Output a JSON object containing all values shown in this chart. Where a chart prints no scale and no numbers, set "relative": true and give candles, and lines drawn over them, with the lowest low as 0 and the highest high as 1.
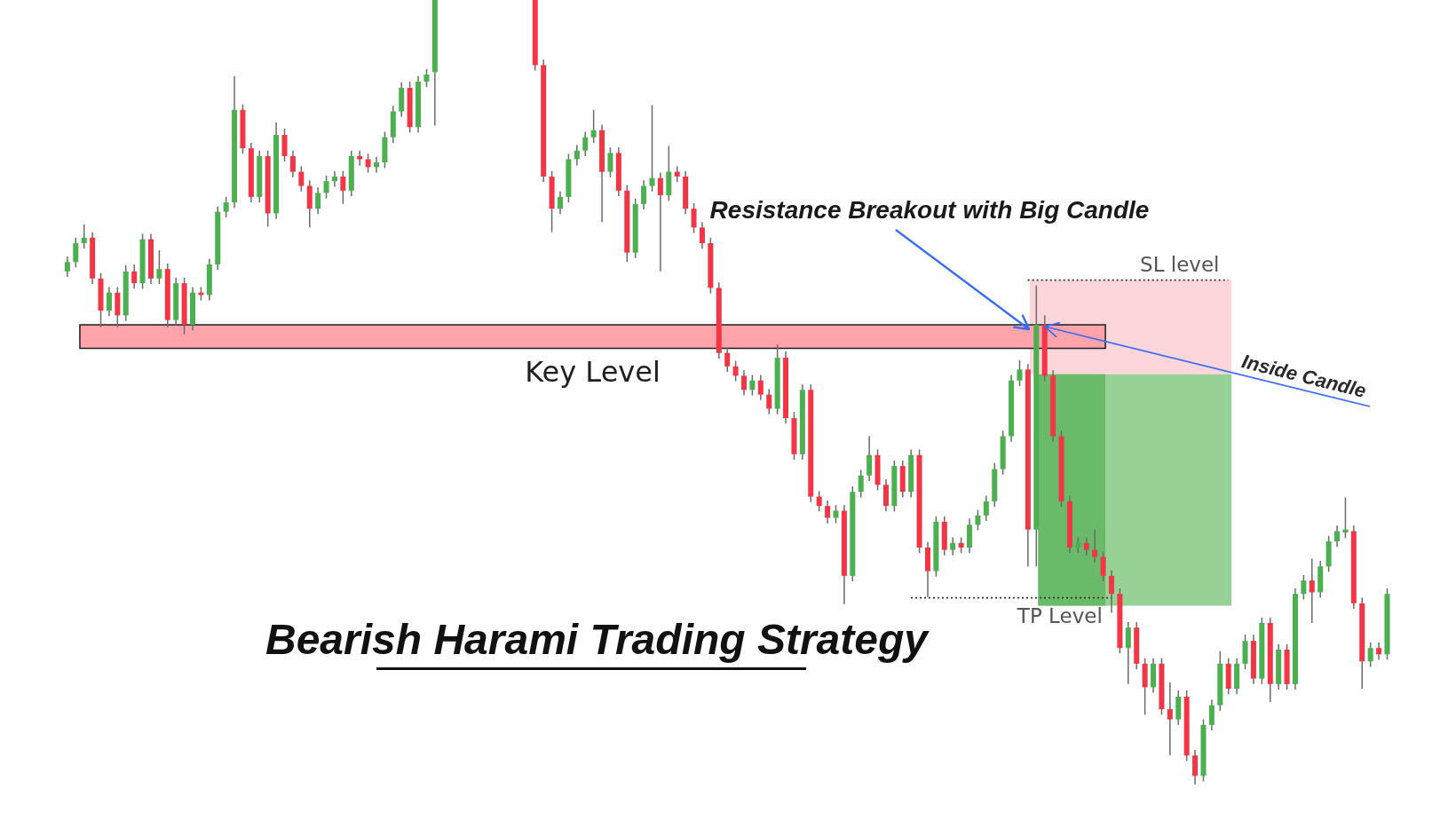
{
  "chart_data": {
    "type": "candlestick",
    "relative": true,
    "title": "Bearish Harami Trading Strategy",
    "annotations": [
      "Resistance Breakout with Big Candle",
      "Inside Candle"
    ],
    "categories": [
      null,
      null,
      null,
      null,
      null,
      null,
      null,
      null,
      null,
      null,
      null,
      null,
      null,
      null,
      null,
      null,
      null,
      null,
      null,
      null,
      null,
      null,
      null,
      null,
      null,
      null,
      null,
      null,
      null,
      null,
      null,
      null,
      null,
      null,
      null,
      null,
      null,
      null,
      null,
      null,
      null,
      null,
      null,
      null,
      null,
      null,
      null,
      null,
      null,
      null,
      null,
      null,
      null,
      null,
      null,
      null,
      null,
      null,
      null,
      null,
      null,
      null,
      null,
      null,
      null,
      null,
      null,
      null,
      null,
      null,
      null,
      null,
      null,
      null,
      null,
      null,
      null,
      null,
      null,
      null,
      null,
      null,
      null,
      null,
      null,
      null,
      null,
      null,
      null,
      null,
      null,
      null,
      null,
      null,
      null,
      null,
      null,
      null,
      null,
      null,
      null,
      null,
      null,
      null,
      null,
      null,
      null,
      null,
      null,
      null,
      null,
      null,
      null,
      null,
      null,
      null,
      null,
      null,
      null,
      null,
      null,
      null,
      null,
      null,
      null,
      null,
      null,
      null,
      null,
      null,
      null,
      null,
      null,
      null,
      null,
      null,
      null,
      null,
      null,
      null,
      null,
      null,
      null,
      null,
      null,
      null,
      null,
      null,
      null,
      null,
      null,
      null,
      null,
      null,
      null,
      null,
      null,
      null,
      null
    ],
    "ohlc": [
      [
        0.654,
        0.673,
        0.647,
        0.666
      ],
      [
        0.666,
        0.697,
        0.659,
        0.69
      ],
      [
        0.69,
        0.714,
        0.683,
        0.697
      ],
      [
        0.697,
        0.704,
        0.638,
        0.645
      ],
      [
        0.645,
        0.652,
        0.583,
        0.604
      ],
      [
        0.604,
        0.634,
        0.597,
        0.627
      ],
      [
        0.627,
        0.634,
        0.583,
        0.598
      ],
      [
        0.598,
        0.662,
        0.591,
        0.654
      ],
      [
        0.654,
        0.663,
        0.632,
        0.639
      ],
      [
        0.639,
        0.702,
        0.632,
        0.695
      ],
      [
        0.695,
        0.702,
        0.638,
        0.645
      ],
      [
        0.645,
        0.681,
        0.638,
        0.657
      ],
      [
        0.657,
        0.664,
        0.583,
        0.592
      ],
      [
        0.592,
        0.646,
        0.585,
        0.639
      ],
      [
        0.639,
        0.646,
        0.574,
        0.586
      ],
      [
        0.586,
        0.634,
        0.579,
        0.627
      ],
      [
        0.627,
        0.634,
        0.617,
        0.624
      ],
      [
        0.624,
        0.67,
        0.617,
        0.663
      ],
      [
        0.663,
        0.737,
        0.656,
        0.73
      ],
      [
        0.73,
        0.749,
        0.723,
        0.742
      ],
      [
        0.742,
        0.903,
        0.735,
        0.86
      ],
      [
        0.86,
        0.867,
        0.804,
        0.811
      ],
      [
        0.811,
        0.818,
        0.742,
        0.749
      ],
      [
        0.749,
        0.808,
        0.742,
        0.801
      ],
      [
        0.801,
        0.808,
        0.711,
        0.728
      ],
      [
        0.728,
        0.844,
        0.721,
        0.828
      ],
      [
        0.828,
        0.836,
        0.794,
        0.801
      ],
      [
        0.801,
        0.808,
        0.774,
        0.781
      ],
      [
        0.781,
        0.788,
        0.756,
        0.763
      ],
      [
        0.763,
        0.77,
        0.71,
        0.734
      ],
      [
        0.734,
        0.761,
        0.727,
        0.754
      ],
      [
        0.754,
        0.776,
        0.747,
        0.769
      ],
      [
        0.769,
        0.782,
        0.762,
        0.775
      ],
      [
        0.775,
        0.782,
        0.74,
        0.757
      ],
      [
        0.757,
        0.808,
        0.75,
        0.801
      ],
      [
        0.801,
        0.808,
        0.789,
        0.797
      ],
      [
        0.797,
        0.804,
        0.78,
        0.787
      ],
      [
        0.787,
        0.8,
        0.78,
        0.793
      ],
      [
        0.793,
        0.832,
        0.786,
        0.825
      ],
      [
        0.825,
        0.865,
        0.818,
        0.858
      ],
      [
        0.858,
        0.895,
        0.851,
        0.888
      ],
      [
        0.888,
        0.896,
        0.831,
        0.838
      ],
      [
        0.838,
        0.903,
        0.831,
        0.896
      ],
      [
        0.896,
        0.912,
        0.889,
        0.905
      ],
      [
        0.908,
        1.0,
        0.84,
        1.0
      ],
      null,
      null,
      null,
      null,
      null,
      null,
      null,
      null,
      null,
      null,
      null,
      [
        1.0,
        1.0,
        0.91,
        0.917
      ],
      [
        0.917,
        0.924,
        0.768,
        0.775
      ],
      [
        0.775,
        0.782,
        0.704,
        0.734
      ],
      [
        0.734,
        0.756,
        0.727,
        0.749
      ],
      [
        0.749,
        0.804,
        0.742,
        0.797
      ],
      [
        0.797,
        0.815,
        0.789,
        0.808
      ],
      [
        0.808,
        0.832,
        0.801,
        0.825
      ],
      [
        0.825,
        0.86,
        0.818,
        0.834
      ],
      [
        0.834,
        0.841,
        0.717,
        0.781
      ],
      [
        0.781,
        0.812,
        0.774,
        0.805
      ],
      [
        0.805,
        0.812,
        0.75,
        0.757
      ],
      [
        0.757,
        0.764,
        0.666,
        0.678
      ],
      [
        0.678,
        0.747,
        0.671,
        0.74
      ],
      [
        0.74,
        0.77,
        0.733,
        0.763
      ],
      [
        0.763,
        0.866,
        0.756,
        0.773
      ],
      [
        0.773,
        0.78,
        0.654,
        0.751
      ],
      [
        0.751,
        0.814,
        0.744,
        0.781
      ],
      [
        0.781,
        0.788,
        0.768,
        0.775
      ],
      [
        0.775,
        0.782,
        0.727,
        0.734
      ],
      [
        0.734,
        0.741,
        0.703,
        0.71
      ],
      [
        0.71,
        0.717,
        0.683,
        0.69
      ],
      [
        0.69,
        0.697,
        0.626,
        0.633
      ],
      [
        0.633,
        0.64,
        0.543,
        0.55
      ],
      [
        0.55,
        0.557,
        0.526,
        0.533
      ],
      [
        0.533,
        0.54,
        0.514,
        0.521
      ],
      [
        0.521,
        0.528,
        0.496,
        0.503
      ],
      [
        0.503,
        0.522,
        0.496,
        0.515
      ],
      [
        0.515,
        0.522,
        0.49,
        0.497
      ],
      [
        0.497,
        0.504,
        0.472,
        0.479
      ],
      [
        0.479,
        0.561,
        0.472,
        0.544
      ],
      [
        0.544,
        0.552,
        0.46,
        0.467
      ],
      [
        0.467,
        0.475,
        0.414,
        0.421
      ],
      [
        0.421,
        0.51,
        0.414,
        0.503
      ],
      [
        0.503,
        0.51,
        0.36,
        0.367
      ],
      [
        0.367,
        0.374,
        0.348,
        0.355
      ],
      [
        0.355,
        0.362,
        0.333,
        0.34
      ],
      [
        0.34,
        0.356,
        0.333,
        0.349
      ],
      [
        0.349,
        0.356,
        0.23,
        0.266
      ],
      [
        0.266,
        0.38,
        0.259,
        0.373
      ],
      [
        0.373,
        0.401,
        0.366,
        0.394
      ],
      [
        0.394,
        0.444,
        0.387,
        0.42
      ],
      [
        0.42,
        0.427,
        0.375,
        0.382
      ],
      [
        0.382,
        0.389,
        0.348,
        0.355
      ],
      [
        0.355,
        0.413,
        0.348,
        0.406
      ],
      [
        0.406,
        0.413,
        0.366,
        0.373
      ],
      [
        0.373,
        0.427,
        0.366,
        0.42
      ],
      [
        0.42,
        0.427,
        0.295,
        0.302
      ],
      [
        0.302,
        0.309,
        0.239,
        0.272
      ],
      [
        0.272,
        0.342,
        0.265,
        0.335
      ],
      [
        0.335,
        0.342,
        0.292,
        0.299
      ],
      [
        0.299,
        0.315,
        0.292,
        0.308
      ],
      [
        0.308,
        0.315,
        0.295,
        0.302
      ],
      [
        0.302,
        0.339,
        0.295,
        0.331
      ],
      [
        0.331,
        0.35,
        0.324,
        0.343
      ],
      [
        0.343,
        0.368,
        0.336,
        0.361
      ],
      [
        0.361,
        0.41,
        0.354,
        0.402
      ],
      [
        0.402,
        0.451,
        0.395,
        0.444
      ],
      [
        0.444,
        0.522,
        0.437,
        0.515
      ],
      [
        0.515,
        0.541,
        0.508,
        0.529
      ],
      [
        0.529,
        0.536,
        0.278,
        0.325
      ],
      [
        0.325,
        0.636,
        0.278,
        0.586
      ],
      [
        0.586,
        0.598,
        0.514,
        0.521
      ],
      [
        0.521,
        0.528,
        0.437,
        0.444
      ],
      [
        0.444,
        0.451,
        0.354,
        0.361
      ],
      [
        0.361,
        0.368,
        0.295,
        0.302
      ],
      [
        0.302,
        0.315,
        0.295,
        0.308
      ],
      [
        0.308,
        0.315,
        0.292,
        0.299
      ],
      [
        0.299,
        0.325,
        0.283,
        0.29
      ],
      [
        0.29,
        0.297,
        0.259,
        0.266
      ],
      [
        0.266,
        0.273,
        0.219,
        0.243
      ],
      [
        0.243,
        0.25,
        0.167,
        0.174
      ],
      [
        0.174,
        0.207,
        0.128,
        0.2
      ],
      [
        0.2,
        0.207,
        0.147,
        0.154
      ],
      [
        0.154,
        0.161,
        0.089,
        0.124
      ],
      [
        0.124,
        0.161,
        0.117,
        0.154
      ],
      [
        0.154,
        0.161,
        0.089,
        0.096
      ],
      [
        0.096,
        0.13,
        0.037,
        0.083
      ],
      [
        0.083,
        0.12,
        0.076,
        0.112
      ],
      [
        0.112,
        0.12,
        0.03,
        0.037
      ],
      [
        0.037,
        0.044,
        0.0,
        0.011
      ],
      [
        0.011,
        0.083,
        0.004,
        0.076
      ],
      [
        0.076,
        0.108,
        0.069,
        0.101
      ],
      [
        0.101,
        0.17,
        0.094,
        0.154
      ],
      [
        0.154,
        0.161,
        0.115,
        0.122
      ],
      [
        0.122,
        0.161,
        0.115,
        0.154
      ],
      [
        0.154,
        0.191,
        0.147,
        0.183
      ],
      [
        0.183,
        0.191,
        0.128,
        0.135
      ],
      [
        0.135,
        0.213,
        0.128,
        0.206
      ],
      [
        0.206,
        0.213,
        0.105,
        0.128
      ],
      [
        0.128,
        0.179,
        0.121,
        0.172
      ],
      [
        0.172,
        0.179,
        0.121,
        0.128
      ],
      [
        0.128,
        0.25,
        0.121,
        0.243
      ],
      [
        0.243,
        0.267,
        0.236,
        0.26
      ],
      [
        0.26,
        0.288,
        0.206,
        0.245
      ],
      [
        0.245,
        0.285,
        0.238,
        0.278
      ],
      [
        0.278,
        0.317,
        0.271,
        0.31
      ],
      [
        0.31,
        0.33,
        0.303,
        0.323
      ],
      [
        0.321,
        0.366,
        0.314,
        0.325
      ],
      [
        0.323,
        0.33,
        0.224,
        0.231
      ],
      [
        0.231,
        0.238,
        0.122,
        0.157
      ],
      [
        0.157,
        0.181,
        0.15,
        0.174
      ],
      [
        0.174,
        0.181,
        0.159,
        0.166
      ],
      [
        0.166,
        0.25,
        0.159,
        0.243
      ]
    ],
    "colors": [
      "#4caf50",
      "#4caf50",
      "#4caf50",
      "#f23645",
      "#f23645",
      "#4caf50",
      "#f23645",
      "#4caf50",
      "#f23645",
      "#4caf50",
      "#f23645",
      "#4caf50",
      "#f23645",
      "#4caf50",
      "#f23645",
      "#4caf50",
      "#f23645",
      "#4caf50",
      "#4caf50",
      "#4caf50",
      "#4caf50",
      "#f23645",
      "#f23645",
      "#4caf50",
      "#f23645",
      "#4caf50",
      "#f23645",
      "#f23645",
      "#f23645",
      "#f23645",
      "#4caf50",
      "#4caf50",
      "#4caf50",
      "#f23645",
      "#4caf50",
      "#f23645",
      "#f23645",
      "#4caf50",
      "#4caf50",
      "#4caf50",
      "#4caf50",
      "#f23645",
      "#4caf50",
      "#4caf50",
      "#4caf50",
      null,
      null,
      null,
      null,
      null,
      null,
      null,
      null,
      null,
      null,
      null,
      "#f23645",
      "#f23645",
      "#f23645",
      "#4caf50",
      "#4caf50",
      "#4caf50",
      "#4caf50",
      "#4caf50",
      "#f23645",
      "#4caf50",
      "#f23645",
      "#f23645",
      "#4caf50",
      "#4caf50",
      "#4caf50",
      "#f23645",
      "#4caf50",
      "#f23645",
      "#f23645",
      "#f23645",
      "#f23645",
      "#f23645",
      "#f23645",
      "#f23645",
      "#f23645",
      "#f23645",
      "#4caf50",
      "#f23645",
      "#f23645",
      "#4caf50",
      "#f23645",
      "#f23645",
      "#4caf50",
      "#f23645",
      "#f23645",
      "#f23645",
      "#4caf50",
      "#f23645",
      "#4caf50",
      "#4caf50",
      "#4caf50",
      "#f23645",
      "#f23645",
      "#4caf50",
      "#f23645",
      "#4caf50",
      "#f23645",
      "#f23645",
      "#4caf50",
      "#f23645",
      "#4caf50",
      "#f23645",
      "#4caf50",
      "#4caf50",
      "#4caf50",
      "#4caf50",
      "#4caf50",
      "#4caf50",
      "#4caf50",
      "#f23645",
      "#4caf50",
      "#f23645",
      "#f23645",
      "#f23645",
      "#f23645",
      "#4caf50",
      "#f23645",
      "#f23645",
      "#f23645",
      "#f23645",
      "#f23645",
      "#4caf50",
      "#f23645",
      "#f23645",
      "#4caf50",
      "#f23645",
      "#f23645",
      "#4caf50",
      "#f23645",
      "#f23645",
      "#4caf50",
      "#4caf50",
      "#4caf50",
      "#f23645",
      "#4caf50",
      "#4caf50",
      "#f23645",
      "#4caf50",
      "#f23645",
      "#4caf50",
      "#f23645",
      "#4caf50",
      "#4caf50",
      "#f23645",
      "#4caf50",
      "#4caf50",
      "#4caf50",
      "#4caf50",
      "#f23645",
      "#f23645",
      "#4caf50",
      "#f23645",
      "#4caf50"
    ],
    "bands": [
      {
        "axis": "y",
        "from": 0.523,
        "to": 0.643,
        "color": "#fcd6da"
      },
      {
        "axis": "y",
        "from": 0.228,
        "to": 0.523,
        "color": "#98d196"
      },
      {
        "axis": "y",
        "from": 0.228,
        "to": 0.523,
        "color": "#6abb69"
      },
      {
        "axis": "y",
        "from": 0.556,
        "to": 0.586,
        "label": "Key Level",
        "color": "#ffa4ab"
      }
    ],
    "ref_lines": [
      {
        "axis": "y",
        "value": 0.643,
        "label": "SL level",
        "color": "#333333",
        "line_style": "dotted"
      },
      {
        "axis": "y",
        "value": 0.238,
        "label": "TP Level",
        "color": "#333333",
        "line_style": "dotted"
      }
    ]
  }
}
